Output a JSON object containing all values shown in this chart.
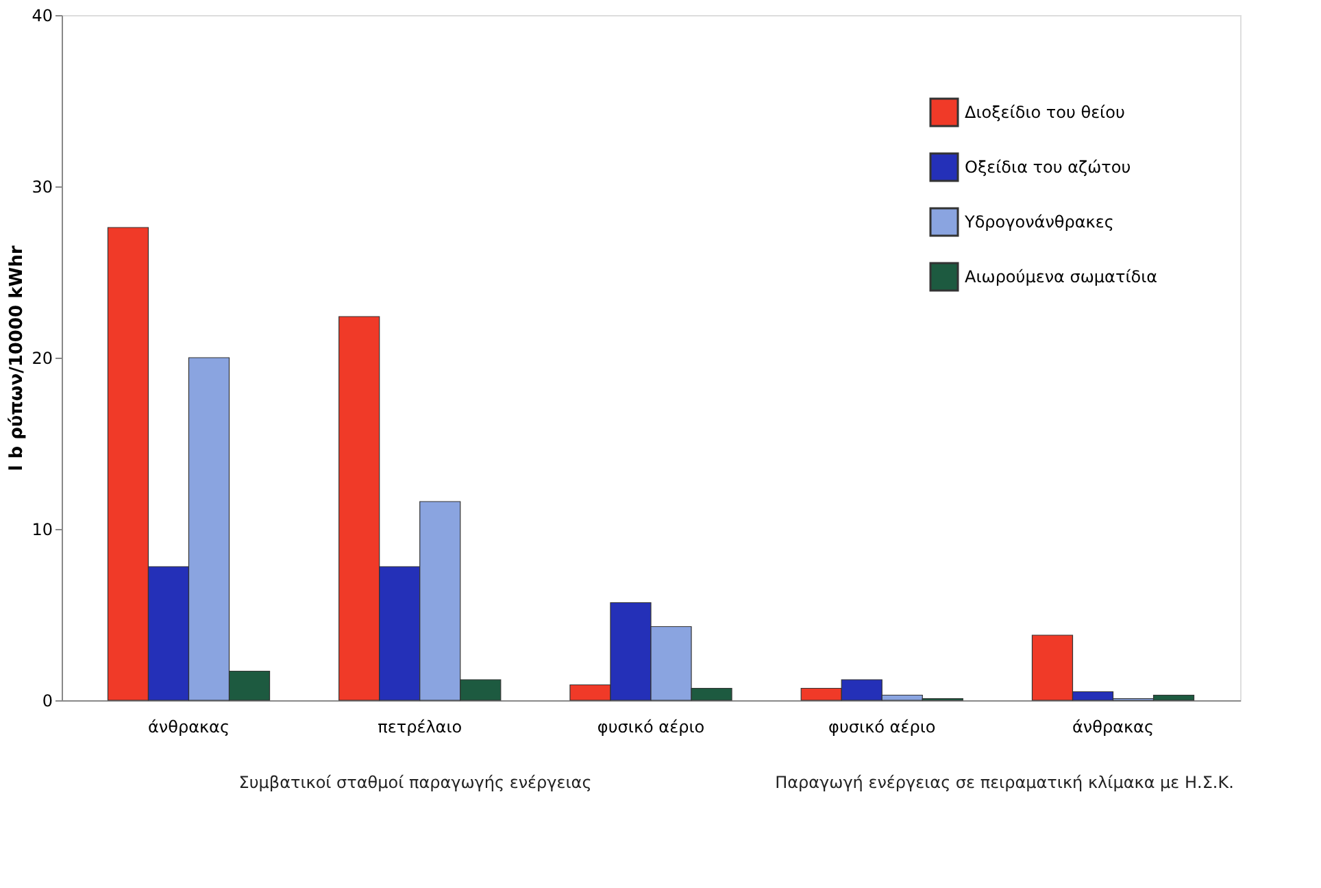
{
  "chart_data": {
    "type": "bar",
    "ylabel": "l b ρύπων/10000 kWhr",
    "categories": [
      "άνθρακας",
      "πετρέλαιο",
      "φυσικό αέριο",
      "φυσικό αέριο",
      "άνθρακας"
    ],
    "series": [
      {
        "name": "Διοξείδιο του θείου",
        "color": "#f03a28",
        "values": [
          27.6,
          22.4,
          0.9,
          0.7,
          3.8
        ]
      },
      {
        "name": "Οξείδια του αζώτου",
        "color": "#2430b8",
        "values": [
          7.8,
          7.8,
          5.7,
          1.2,
          0.5
        ]
      },
      {
        "name": "Υδρογονάνθρακες",
        "color": "#8aa4e0",
        "values": [
          20,
          11.6,
          4.3,
          0.3,
          0.1
        ]
      },
      {
        "name": "Αιωρούμενα σωματίδια",
        "color": "#1d5a40",
        "values": [
          1.7,
          1.2,
          0.7,
          0.1,
          0.3
        ]
      }
    ],
    "ylim": [
      0,
      40
    ],
    "yticks": [
      0,
      10,
      20,
      30,
      40
    ],
    "grid": false,
    "legend": "top right",
    "annotations": [
      "Συμβατικοί σταθμοί παραγωγής ενέργειας",
      "Παραγωγή ενέργειας σε πειραματική κλίμακα με Η.Σ.Κ."
    ]
  }
}
